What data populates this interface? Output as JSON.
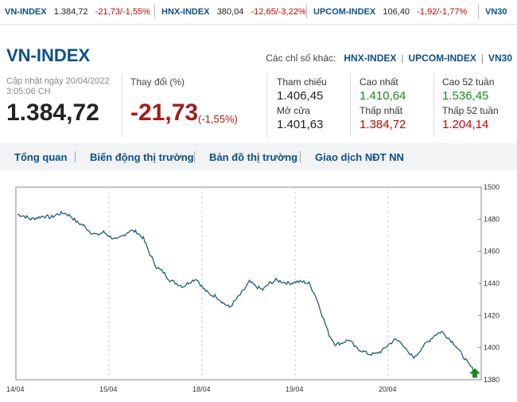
{
  "ticker": [
    {
      "name": "VN-INDEX",
      "price": "1.384,72",
      "change": "-21,73/-1,55%"
    },
    {
      "name": "HNX-INDEX",
      "price": "380,04",
      "change": "-12,65/-3,22%"
    },
    {
      "name": "UPCOM-INDEX",
      "price": "106,40",
      "change": "-1,92/-1,77%"
    },
    {
      "name": "VN30",
      "price": "",
      "change": ""
    }
  ],
  "header": {
    "title": "VN-INDEX",
    "others_label": "Các chỉ số khác:",
    "other_links": [
      "HNX-INDEX",
      "UPCOM-INDEX",
      "VN30"
    ]
  },
  "summary": {
    "updated_line1": "Cập nhật ngày 20/04/2022",
    "updated_line2": "3:05:06 CH",
    "value": "1.384,72",
    "change_label": "Thay đổi (%)",
    "change": "-21,73",
    "change_pct": "(-1,55%)"
  },
  "stats": {
    "ref_label": "Tham chiếu",
    "ref": "1.406,45",
    "open_label": "Mở cửa",
    "open": "1.401,63",
    "high_label": "Cao nhất",
    "high": "1.410,64",
    "low_label": "Thấp nhất",
    "low": "1.384,72",
    "high52_label": "Cao 52 tuần",
    "high52": "1.536,45",
    "low52_label": "Thấp 52 tuần",
    "low52": "1.204,14"
  },
  "tabs": [
    "Tổng quan",
    "Biến động thị trường",
    "Bản đồ thị trường",
    "Giao dịch NĐT NN"
  ],
  "colors": {
    "line": "#1f5f7a",
    "accent": "#0d4f8b",
    "down": "#c00",
    "up": "#1c8b1c"
  },
  "chart_data": {
    "type": "line",
    "x_ticks": [
      "14/04",
      "15/04",
      "18/04",
      "19/04",
      "20/04"
    ],
    "y_ticks": [
      1380,
      1400,
      1420,
      1440,
      1460,
      1480,
      1500
    ],
    "ylim": [
      1380,
      1500
    ],
    "grid": true,
    "series": [
      {
        "values": [
          1483,
          1482,
          1480,
          1481,
          1482,
          1481,
          1483,
          1484,
          1482,
          1478,
          1476,
          1472,
          1470,
          1472,
          1469,
          1467,
          1470,
          1473,
          1472,
          1468,
          1458,
          1450,
          1447,
          1442,
          1440,
          1438,
          1441,
          1443,
          1437,
          1433,
          1432,
          1428,
          1425,
          1430,
          1435,
          1441,
          1438,
          1436,
          1440,
          1442,
          1441,
          1440,
          1441,
          1441,
          1440,
          1432,
          1420,
          1408,
          1402,
          1403,
          1405,
          1400,
          1398,
          1396,
          1396,
          1398,
          1402,
          1405,
          1403,
          1396,
          1394,
          1400,
          1404,
          1408,
          1410,
          1406,
          1402,
          1396,
          1390,
          1385
        ]
      }
    ],
    "last_value": 1384.72
  }
}
